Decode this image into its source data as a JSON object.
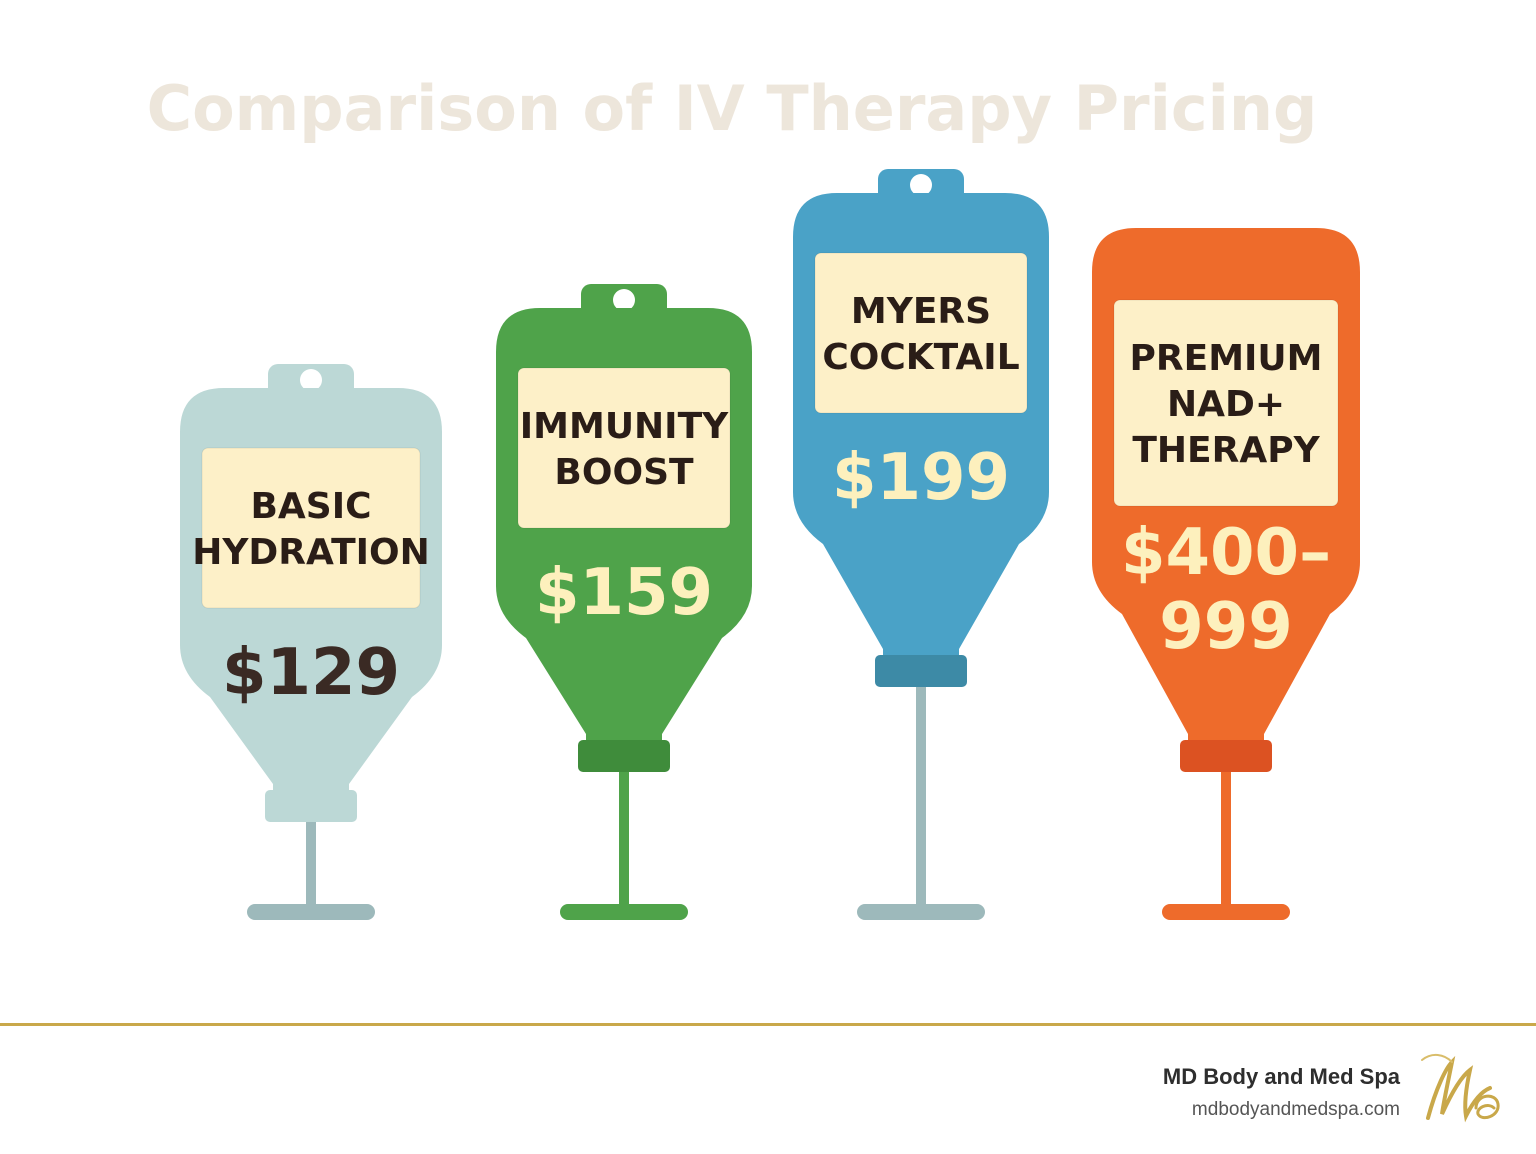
{
  "chart_data": {
    "type": "bar",
    "title": "Comparison of IV Therapy Pricing",
    "categories": [
      "BASIC HYDRATION",
      "IMMUNITY BOOST",
      "MYERS COCKTAIL",
      "PREMIUM NAD+ THERAPY"
    ],
    "label_lines": [
      [
        "BASIC",
        "HYDRATION"
      ],
      [
        "IMMUNITY",
        "BOOST"
      ],
      [
        "MYERS",
        "COCKTAIL"
      ],
      [
        "PREMIUM",
        "NAD+",
        "THERAPY"
      ]
    ],
    "price_lines": [
      [
        "$129"
      ],
      [
        "$159"
      ],
      [
        "$199"
      ],
      [
        "$400–",
        "999"
      ]
    ],
    "values": [
      129,
      159,
      199,
      400
    ],
    "value_ranges": [
      [
        129,
        129
      ],
      [
        159,
        159
      ],
      [
        199,
        199
      ],
      [
        400,
        999
      ]
    ],
    "ylim": [
      0,
      999
    ],
    "colors": {
      "bags": [
        "#bcd8d6",
        "#4fa34a",
        "#4aa2c7",
        "#ee6b2b"
      ],
      "connectors": [
        "#bcd8d6",
        "#3f8c3b",
        "#3d8aa6",
        "#dc5222"
      ],
      "stands": [
        "#9db9bb",
        "#4fa34a",
        "#9db9bb",
        "#ee6b2b"
      ],
      "price_text": [
        "#3a2a24",
        "#fdf0bd",
        "#fdf0bd",
        "#fdf0bd"
      ],
      "label_box": "#fdf0c8",
      "label_text": "#2a1d17"
    }
  },
  "footer": {
    "brand_name": "MD Body and Med Spa",
    "brand_url": "mdbodyandmedspa.com"
  },
  "logo_icon": "md-monogram-logo-icon"
}
